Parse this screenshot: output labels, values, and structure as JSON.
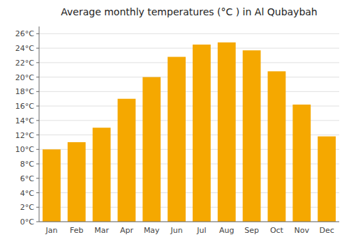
{
  "chart_data": {
    "type": "bar",
    "title": "Average monthly temperatures (°C ) in Al Qubaybah",
    "categories": [
      "Jan",
      "Feb",
      "Mar",
      "Apr",
      "May",
      "Jun",
      "Jul",
      "Aug",
      "Sep",
      "Oct",
      "Nov",
      "Dec"
    ],
    "values": [
      10.0,
      11.0,
      13.0,
      17.0,
      20.0,
      22.8,
      24.5,
      24.8,
      23.7,
      20.8,
      16.2,
      11.8
    ],
    "color": "#F5A800",
    "ylim": [
      0,
      27
    ],
    "yticks": [
      {
        "value": 0,
        "label": "0°C"
      },
      {
        "value": 2,
        "label": "2°C"
      },
      {
        "value": 4,
        "label": "4°C"
      },
      {
        "value": 6,
        "label": "6°C"
      },
      {
        "value": 8,
        "label": "8°C"
      },
      {
        "value": 10,
        "label": "10°C"
      },
      {
        "value": 12,
        "label": "12°C"
      },
      {
        "value": 14,
        "label": "14°C"
      },
      {
        "value": 16,
        "label": "16°C"
      },
      {
        "value": 18,
        "label": "18°C"
      },
      {
        "value": 20,
        "label": "20°C"
      },
      {
        "value": 22,
        "label": "22°C"
      },
      {
        "value": 24,
        "label": "24°C"
      },
      {
        "value": 26,
        "label": "26°C"
      }
    ],
    "grid": true
  }
}
